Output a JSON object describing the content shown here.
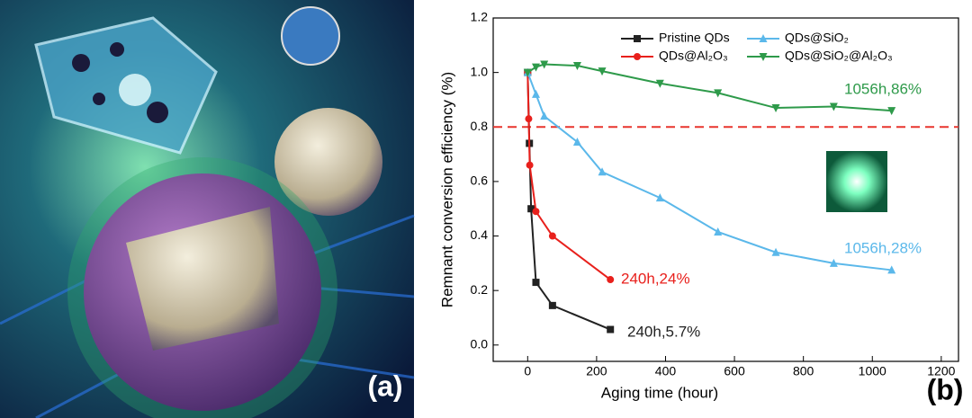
{
  "panel_labels": [
    "(a)",
    "(b)"
  ],
  "chart_data": {
    "type": "line",
    "xlabel": "Aging time (hour)",
    "ylabel": "Remnant conversion efficiency (%)",
    "xlim": [
      -100,
      1250
    ],
    "xticks": [
      0,
      200,
      400,
      600,
      800,
      1000,
      1200
    ],
    "ylim": [
      -0.06,
      1.2
    ],
    "yticks": [
      {
        "value": 0,
        "label": "0.0"
      },
      0.2,
      0.4,
      0.6,
      0.8,
      {
        "value": 1,
        "label": "1.0"
      },
      1.2
    ],
    "reference_line": {
      "value": 0.8,
      "color": "#e8352e"
    },
    "series": [
      {
        "name": "Pristine QDs",
        "color": "#222222",
        "marker": "square",
        "x": [
          0,
          5,
          10,
          24,
          72,
          240
        ],
        "values": [
          1.0,
          0.74,
          0.5,
          0.23,
          0.145,
          0.057
        ]
      },
      {
        "name": "QDs@Al₂O₃",
        "color": "#e8201c",
        "marker": "circle",
        "x": [
          0,
          3,
          6,
          24,
          72,
          240
        ],
        "values": [
          1.0,
          0.83,
          0.66,
          0.49,
          0.4,
          0.24
        ]
      },
      {
        "name": "QDs@SiO₂",
        "color": "#5bb8ea",
        "marker": "triangle-up",
        "x": [
          0,
          24,
          48,
          144,
          216,
          384,
          552,
          720,
          888,
          1056
        ],
        "values": [
          1.0,
          0.92,
          0.84,
          0.745,
          0.635,
          0.54,
          0.415,
          0.34,
          0.3,
          0.275
        ]
      },
      {
        "name": "QDs@SiO₂@Al₂O₃",
        "color": "#2e9a4a",
        "marker": "triangle-down",
        "x": [
          0,
          24,
          48,
          144,
          216,
          384,
          552,
          720,
          888,
          1056
        ],
        "values": [
          1.0,
          1.02,
          1.03,
          1.025,
          1.005,
          0.96,
          0.925,
          0.87,
          0.875,
          0.86
        ]
      }
    ],
    "annotations": [
      {
        "text": "1056h,86%",
        "color": "#2e9a4a"
      },
      {
        "text": "1056h,28%",
        "color": "#5bb8ea"
      },
      {
        "text": "240h,24%",
        "color": "#e8201c"
      },
      {
        "text": "240h,5.7%",
        "color": "#222222"
      }
    ]
  }
}
